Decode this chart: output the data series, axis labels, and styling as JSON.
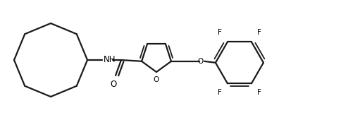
{
  "background": "#ffffff",
  "line_color": "#1a1a1a",
  "line_width": 1.6,
  "text_color": "#000000",
  "label_fontsize": 8.5,
  "figsize": [
    4.84,
    1.7
  ],
  "dpi": 100,
  "xlim": [
    0,
    484
  ],
  "ylim": [
    0,
    170
  ]
}
